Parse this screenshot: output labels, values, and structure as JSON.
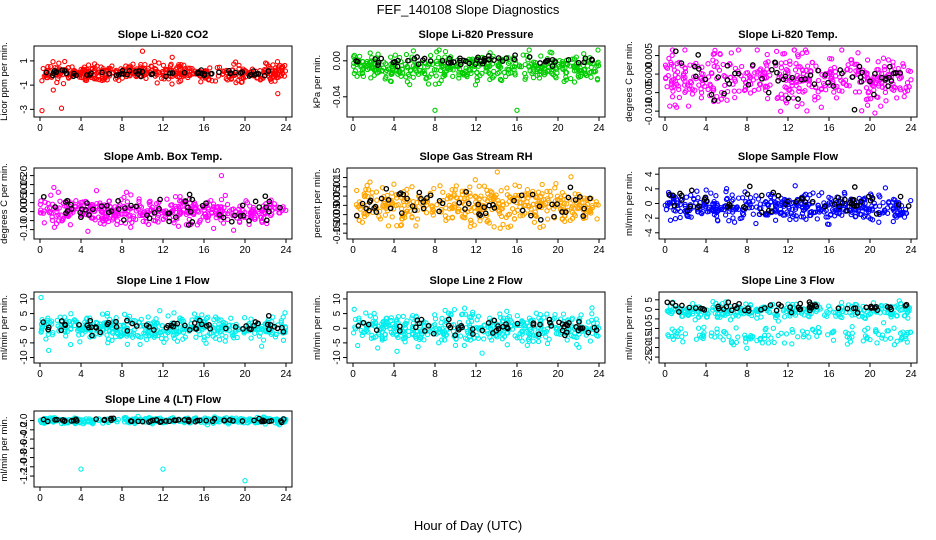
{
  "figure": {
    "title": "FEF_140108  Slope Diagnostics",
    "xlabel": "Hour of Day (UTC)"
  },
  "chart_data": [
    {
      "type": "scatter",
      "title": "Slope Li-820 CO2",
      "ylabel": "Licor ppm per min.",
      "color": "#ff0000",
      "xlim": [
        0,
        24
      ],
      "x_ticks": [
        0,
        4,
        8,
        12,
        16,
        20,
        24
      ],
      "ylim": [
        -3.3,
        1.9
      ],
      "y_ticks": [
        -3,
        -1,
        1
      ],
      "y_tick_labels": [
        "-3",
        "-1",
        "1"
      ],
      "center": 0.0,
      "spread": 0.35,
      "outliers": [
        {
          "x": 10,
          "y": 1.8
        },
        {
          "x": 2.1,
          "y": -2.9
        },
        {
          "x": 0.2,
          "y": -3.1
        },
        {
          "x": 23.2,
          "y": -1.7
        },
        {
          "x": 12.9,
          "y": 1.3
        },
        {
          "x": 1.3,
          "y": -1.4
        }
      ],
      "black_center": 0.0,
      "black_spread": 0.15
    },
    {
      "type": "scatter",
      "title": "Slope Li-820 Pressure",
      "ylabel": "kPa per min.",
      "color": "#00cc00",
      "xlim": [
        0,
        24
      ],
      "x_ticks": [
        0,
        4,
        8,
        12,
        16,
        20,
        24
      ],
      "ylim": [
        -0.058,
        0.012
      ],
      "y_ticks": [
        -0.04,
        0.0
      ],
      "y_tick_labels": [
        "-0.04",
        "0.00"
      ],
      "center": -0.008,
      "spread": 0.007,
      "outliers": [
        {
          "x": 8,
          "y": -0.055
        },
        {
          "x": 16,
          "y": -0.055
        }
      ],
      "black_center": 0.0,
      "black_spread": 0.003
    },
    {
      "type": "scatter",
      "title": "Slope Li-820 Temp.",
      "ylabel": "degrees C per min.",
      "color": "#ff00ff",
      "xlim": [
        0,
        24
      ],
      "x_ticks": [
        0,
        4,
        8,
        12,
        16,
        20,
        24
      ],
      "ylim": [
        -0.0105,
        0.0065
      ],
      "y_ticks": [
        -0.01,
        -0.005,
        0.0,
        0.005
      ],
      "y_tick_labels": [
        "-0.010",
        "-0.005",
        "0.000",
        "0.005"
      ],
      "center": -0.001,
      "spread": 0.0035,
      "outliers": [],
      "black_center": -0.001,
      "black_spread": 0.003
    },
    {
      "type": "scatter",
      "title": "Slope Amb. Box Temp.",
      "ylabel": "degrees C per min.",
      "color": "#ff00ff",
      "xlim": [
        0,
        24
      ],
      "x_ticks": [
        0,
        4,
        8,
        12,
        16,
        20,
        24
      ],
      "ylim": [
        -0.13,
        0.22
      ],
      "y_ticks": [
        -0.1,
        -0.05,
        0.0,
        0.05,
        0.1,
        0.15,
        0.2
      ],
      "y_tick_labels": [
        "-0.10",
        "",
        "0.00",
        "0.05",
        "0.10",
        "0.15",
        "0.20"
      ],
      "center": 0.0,
      "spread": 0.04,
      "outliers": [
        {
          "x": 17.7,
          "y": 0.2
        }
      ],
      "black_center": 0.0,
      "black_spread": 0.04
    },
    {
      "type": "scatter",
      "title": "Slope Gas Stream RH",
      "ylabel": "percent per min.",
      "color": "#ffa500",
      "xlim": [
        0,
        24
      ],
      "x_ticks": [
        0,
        4,
        8,
        12,
        16,
        20,
        24
      ],
      "ylim": [
        -0.16,
        0.18
      ],
      "y_ticks": [
        -0.15,
        -0.1,
        -0.05,
        0.0,
        0.05,
        0.1,
        0.15
      ],
      "y_tick_labels": [
        "-0.15",
        "-0.10",
        "-0.05",
        "0.00",
        "0.05",
        "0.10",
        "0.15"
      ],
      "center": 0.0,
      "spread": 0.05,
      "outliers": [],
      "black_center": 0.0,
      "black_spread": 0.04
    },
    {
      "type": "scatter",
      "title": "Slope Sample Flow",
      "ylabel": "ml/min per min.",
      "color": "#0000ff",
      "xlim": [
        0,
        24
      ],
      "x_ticks": [
        0,
        4,
        8,
        12,
        16,
        20,
        24
      ],
      "ylim": [
        -4.3,
        4.3
      ],
      "y_ticks": [
        -4,
        -2,
        0,
        2,
        4
      ],
      "y_tick_labels": [
        "-4",
        "-2",
        "0",
        "2",
        "4"
      ],
      "center": -0.5,
      "spread": 0.9,
      "outliers": [],
      "black_center": 0.3,
      "black_spread": 0.8
    },
    {
      "type": "scatter",
      "title": "Slope Line 1 Flow",
      "ylabel": "ml/min per min.",
      "color": "#00eeee",
      "xlim": [
        0,
        24
      ],
      "x_ticks": [
        0,
        4,
        8,
        12,
        16,
        20,
        24
      ],
      "ylim": [
        -10.5,
        11
      ],
      "y_ticks": [
        -10,
        -5,
        0,
        5,
        10
      ],
      "y_tick_labels": [
        "-10",
        "-5",
        "0",
        "5",
        "10"
      ],
      "center": 0.0,
      "spread": 2.2,
      "outliers": [
        {
          "x": 0.1,
          "y": 10.5
        }
      ],
      "black_center": 0.5,
      "black_spread": 1.0
    },
    {
      "type": "scatter",
      "title": "Slope Line 2 Flow",
      "ylabel": "ml/min per min.",
      "color": "#00eeee",
      "xlim": [
        0,
        24
      ],
      "x_ticks": [
        0,
        4,
        8,
        12,
        16,
        20,
        24
      ],
      "ylim": [
        -10.5,
        11
      ],
      "y_ticks": [
        -10,
        -5,
        0,
        5,
        10
      ],
      "y_tick_labels": [
        "-10",
        "-5",
        "0",
        "5",
        "10"
      ],
      "center": 0.0,
      "spread": 2.5,
      "outliers": [
        {
          "x": 12.6,
          "y": -8.5
        }
      ],
      "black_center": 0.3,
      "black_spread": 1.5
    },
    {
      "type": "scatter",
      "title": "Slope Line 3 Flow",
      "ylabel": "ml/min per min.",
      "color": "#00eeee",
      "xlim": [
        0,
        24
      ],
      "x_ticks": [
        0,
        4,
        8,
        12,
        16,
        20,
        24
      ],
      "ylim": [
        -26,
        7
      ],
      "y_ticks": [
        -25,
        -20,
        -15,
        -10,
        -5,
        0,
        5
      ],
      "y_tick_labels": [
        "-25",
        "-20",
        "-15",
        "-10",
        "-5",
        "0",
        "5"
      ],
      "center": -1.0,
      "spread": 2.0,
      "second_band": {
        "center": -14,
        "spread": 2.5,
        "fraction": 0.3
      },
      "outliers": [],
      "black_center": 1.0,
      "black_spread": 1.5
    },
    {
      "type": "scatter",
      "title": "Slope Line 4 (LT) Flow",
      "ylabel": "ml/min per min.",
      "color": "#00eeee",
      "xlim": [
        0,
        24
      ],
      "x_ticks": [
        0,
        4,
        8,
        12,
        16,
        20,
        24
      ],
      "ylim": [
        -1.35,
        0.12
      ],
      "y_ticks": [
        -1.2,
        -1.0,
        -0.8,
        -0.6,
        -0.4,
        -0.2,
        0.0
      ],
      "y_tick_labels": [
        "-1.2",
        "-1.0",
        "-0.8",
        "-0.6",
        "-0.4",
        "-0.2",
        "0.0"
      ],
      "center": 0.0,
      "spread": 0.03,
      "outliers": [
        {
          "x": 4,
          "y": -1.05
        },
        {
          "x": 12,
          "y": -1.05
        },
        {
          "x": 20,
          "y": -1.3
        }
      ],
      "black_center": 0.0,
      "black_spread": 0.02
    }
  ]
}
